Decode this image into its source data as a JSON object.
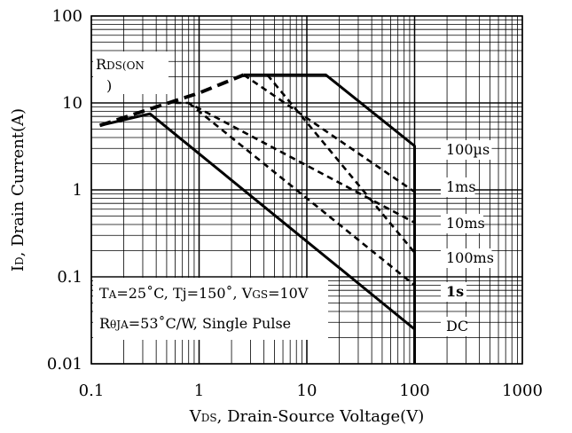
{
  "chart_data": {
    "type": "line",
    "title": "",
    "xscale": "log",
    "yscale": "log",
    "xlim": [
      0.1,
      1000
    ],
    "ylim": [
      0.01,
      100
    ],
    "grid": true,
    "x_ticks": [
      "0.1",
      "1",
      "10",
      "100",
      "1000"
    ],
    "y_ticks": [
      "0.01",
      "0.1",
      "1",
      "10",
      "100"
    ],
    "xlabel": {
      "main": "V",
      "sub": "DS",
      "rest": ", Drain-Source Voltage(V)"
    },
    "ylabel": {
      "main": "I",
      "sub": "D",
      "rest": ", Drain Current(A)"
    },
    "series": [
      {
        "name": "RDS(ON)",
        "style": "dashed-thick",
        "x": [
          0.12,
          0.4,
          1.0,
          2.6
        ],
        "y": [
          5.5,
          9.0,
          13.0,
          21.0
        ]
      },
      {
        "name": "100µs",
        "style": "solid",
        "x": [
          2.6,
          15,
          100,
          100
        ],
        "y": [
          21,
          21,
          3.2,
          0.01
        ]
      },
      {
        "name": "1ms",
        "style": "dashed",
        "x": [
          2.6,
          100
        ],
        "y": [
          21,
          0.95
        ]
      },
      {
        "name": "10ms",
        "style": "dashed",
        "x": [
          0.6,
          0.8,
          100
        ],
        "y": [
          10,
          10,
          0.42
        ]
      },
      {
        "name": "100ms",
        "style": "dashed",
        "x": [
          4.3,
          100
        ],
        "y": [
          21,
          0.19
        ]
      },
      {
        "name": "1s",
        "style": "dashed",
        "x": [
          0.8,
          100
        ],
        "y": [
          10,
          0.08
        ]
      },
      {
        "name": "DC",
        "style": "solid",
        "x": [
          0.12,
          0.35,
          100
        ],
        "y": [
          5.5,
          7.5,
          0.025
        ]
      }
    ],
    "annotations": [
      {
        "id": "rds",
        "main": "R",
        "sub": "DS(ON",
        "line2": ")"
      },
      {
        "id": "cond1",
        "parts": [
          {
            "t": "T",
            "sub": false
          },
          {
            "t": "A",
            "sub": true
          },
          {
            "t": "=25˚C, Tj=150˚, V",
            "sub": false
          },
          {
            "t": "GS",
            "sub": true
          },
          {
            "t": "=10V",
            "sub": false
          }
        ]
      },
      {
        "id": "cond2",
        "parts": [
          {
            "t": "R",
            "sub": false
          },
          {
            "t": "θJA",
            "sub": true
          },
          {
            "t": "=53˚C/W, Single Pulse",
            "sub": false
          }
        ]
      }
    ]
  }
}
